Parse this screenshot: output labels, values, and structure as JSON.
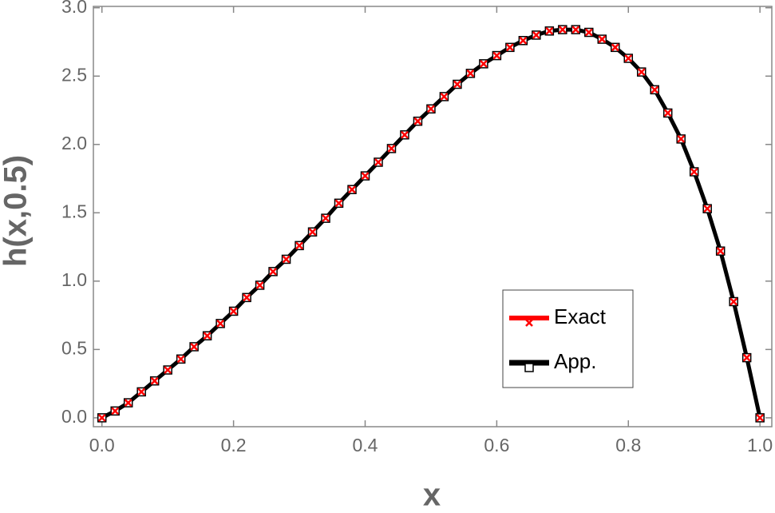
{
  "chart_data": {
    "type": "line",
    "xlabel": "x",
    "ylabel": "h(x,0.5)",
    "x": [
      0,
      0.02,
      0.04,
      0.06,
      0.08,
      0.1,
      0.12,
      0.14,
      0.16,
      0.18,
      0.2,
      0.22,
      0.24,
      0.26,
      0.28,
      0.3,
      0.32,
      0.34,
      0.36,
      0.38,
      0.4,
      0.42,
      0.44,
      0.46,
      0.48,
      0.5,
      0.52,
      0.54,
      0.56,
      0.58,
      0.6,
      0.62,
      0.64,
      0.66,
      0.68,
      0.7,
      0.72,
      0.74,
      0.76,
      0.78,
      0.8,
      0.82,
      0.84,
      0.86,
      0.88,
      0.9,
      0.92,
      0.94,
      0.96,
      0.98,
      1.0
    ],
    "series": [
      {
        "name": "Exact",
        "color": "#ff0000",
        "marker": "x",
        "values": [
          0,
          0.05,
          0.11,
          0.19,
          0.27,
          0.35,
          0.43,
          0.52,
          0.6,
          0.69,
          0.78,
          0.88,
          0.97,
          1.07,
          1.16,
          1.26,
          1.36,
          1.46,
          1.57,
          1.67,
          1.77,
          1.87,
          1.97,
          2.07,
          2.17,
          2.26,
          2.35,
          2.44,
          2.52,
          2.59,
          2.65,
          2.71,
          2.76,
          2.8,
          2.83,
          2.84,
          2.84,
          2.82,
          2.77,
          2.71,
          2.63,
          2.53,
          2.4,
          2.23,
          2.04,
          1.8,
          1.53,
          1.22,
          0.85,
          0.44,
          0
        ]
      },
      {
        "name": "App.",
        "color": "#000000",
        "marker": "square",
        "values": [
          0,
          0.05,
          0.11,
          0.19,
          0.27,
          0.35,
          0.43,
          0.52,
          0.6,
          0.69,
          0.78,
          0.88,
          0.97,
          1.07,
          1.16,
          1.26,
          1.36,
          1.46,
          1.57,
          1.67,
          1.77,
          1.87,
          1.97,
          2.07,
          2.17,
          2.26,
          2.35,
          2.44,
          2.52,
          2.59,
          2.65,
          2.71,
          2.76,
          2.8,
          2.83,
          2.84,
          2.84,
          2.82,
          2.77,
          2.71,
          2.63,
          2.53,
          2.4,
          2.23,
          2.04,
          1.8,
          1.53,
          1.22,
          0.85,
          0.44,
          0
        ]
      }
    ],
    "xlim": [
      -0.013,
      1.018
    ],
    "ylim": [
      -0.065,
      3.01
    ],
    "xticks": [
      {
        "value": 0,
        "label": "0.0"
      },
      {
        "value": 0.2,
        "label": "0.2"
      },
      {
        "value": 0.4,
        "label": "0.4"
      },
      {
        "value": 0.6,
        "label": "0.6"
      },
      {
        "value": 0.8,
        "label": "0.8"
      },
      {
        "value": 1,
        "label": "1.0"
      }
    ],
    "yticks": [
      {
        "value": 0,
        "label": "0.0"
      },
      {
        "value": 0.5,
        "label": "0.5"
      },
      {
        "value": 1,
        "label": "1.0"
      },
      {
        "value": 1.5,
        "label": "1.5"
      },
      {
        "value": 2,
        "label": "2.0"
      },
      {
        "value": 2.5,
        "label": "2.5"
      },
      {
        "value": 3,
        "label": "3.0"
      }
    ],
    "grid": false,
    "legend": "lower right"
  }
}
